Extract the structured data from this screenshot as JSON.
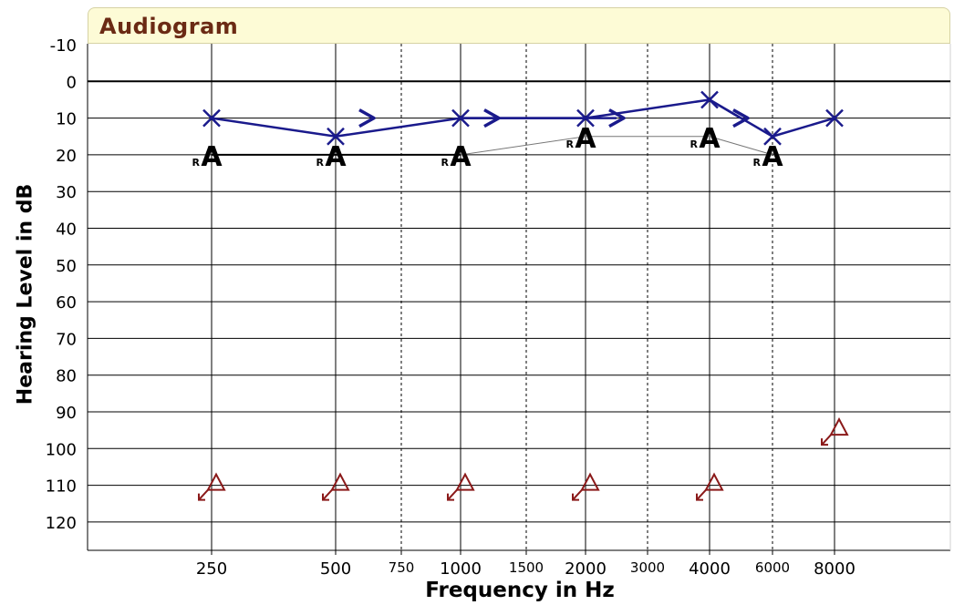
{
  "chart_data": {
    "type": "line",
    "title": "Audiogram",
    "xlabel": "Frequency in Hz",
    "ylabel": "Hearing Level in dB",
    "ylim": [
      -10,
      120
    ],
    "y_ticks": [
      -10,
      0,
      10,
      20,
      30,
      40,
      50,
      60,
      70,
      80,
      90,
      100,
      110,
      120
    ],
    "x_ticks_major": [
      "250",
      "500",
      "1000",
      "2000",
      "4000",
      "8000"
    ],
    "x_ticks_minor": [
      "750",
      "1500",
      "3000",
      "6000"
    ],
    "x_tick_label_6000": "6000",
    "grid": true,
    "series": [
      {
        "name": "",
        "marker": "X",
        "color": "#1a1a8c",
        "points": [
          {
            "x": "250",
            "y": 10
          },
          {
            "x": "500",
            "y": 15
          },
          {
            "x": "1000",
            "y": 10
          },
          {
            "x": "2000",
            "y": 10
          },
          {
            "x": "4000",
            "y": 5
          },
          {
            "x": "6000",
            "y": 15
          },
          {
            "x": "8000",
            "y": 10
          }
        ]
      },
      {
        "name": "",
        "marker": ">",
        "color": "#1a1a8c",
        "points": [
          {
            "x": "500",
            "y": 10
          },
          {
            "x": "1000",
            "y": 10
          },
          {
            "x": "2000",
            "y": 10
          },
          {
            "x": "4000",
            "y": 10
          }
        ]
      },
      {
        "name": "",
        "marker": "A",
        "marker_sub": "R",
        "color": "#000000",
        "points": [
          {
            "x": "250",
            "y": 20
          },
          {
            "x": "500",
            "y": 20
          },
          {
            "x": "1000",
            "y": 20
          },
          {
            "x": "2000",
            "y": 15
          },
          {
            "x": "4000",
            "y": 15
          },
          {
            "x": "6000",
            "y": 20
          }
        ]
      },
      {
        "name": "",
        "marker": "triangle-no-response",
        "color": "#8b1a1a",
        "points": [
          {
            "x": "250",
            "y": 110
          },
          {
            "x": "500",
            "y": 110
          },
          {
            "x": "1000",
            "y": 110
          },
          {
            "x": "2000",
            "y": 110
          },
          {
            "x": "4000",
            "y": 110
          },
          {
            "x": "8000",
            "y": 95
          }
        ]
      }
    ]
  }
}
